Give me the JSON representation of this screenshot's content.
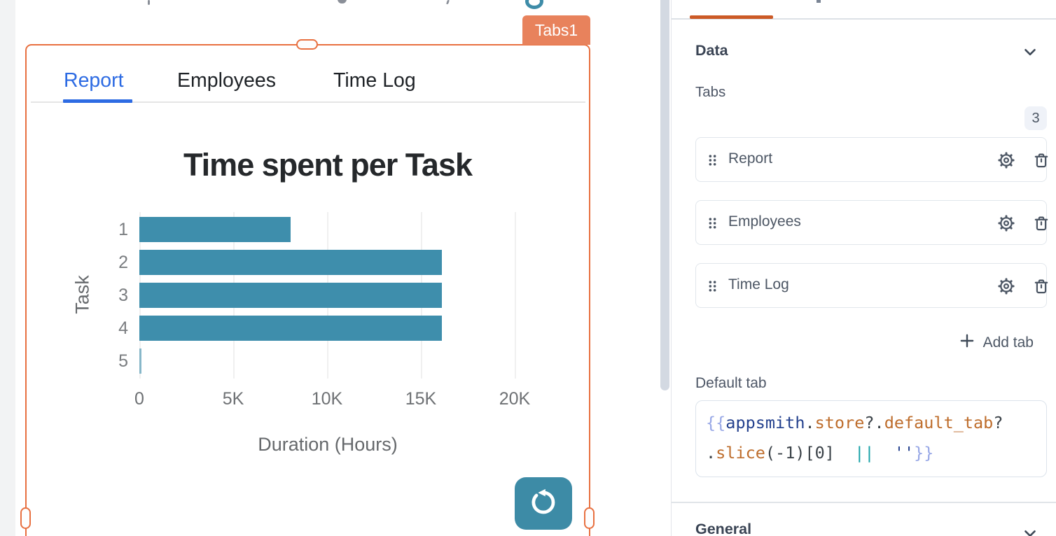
{
  "canvas": {
    "widget_badge": "Tabs1",
    "tabs": [
      {
        "label": "Report",
        "active": true
      },
      {
        "label": "Employees",
        "active": false
      },
      {
        "label": "Time Log",
        "active": false
      }
    ]
  },
  "chart_data": {
    "type": "bar",
    "orientation": "horizontal",
    "title": "Time spent per Task",
    "categories": [
      "1",
      "2",
      "3",
      "4",
      "5"
    ],
    "values": [
      8060,
      16120,
      16120,
      16120,
      100
    ],
    "xlabel": "Duration (Hours)",
    "ylabel": "Task",
    "x_ticks": [
      0,
      5000,
      10000,
      15000,
      20000
    ],
    "x_tick_labels": [
      "0",
      "5K",
      "10K",
      "15K",
      "20K"
    ],
    "xlim": [
      0,
      22500
    ],
    "grid": true,
    "legend": false,
    "bar_color": "#3E8EAC"
  },
  "panel": {
    "data_section_title": "Data",
    "tabs_field_label": "Tabs",
    "tabs_count": "3",
    "tabs_list": [
      {
        "label": "Report"
      },
      {
        "label": "Employees"
      },
      {
        "label": "Time Log"
      }
    ],
    "add_tab_label": "Add tab",
    "default_tab_label": "Default tab",
    "code": {
      "lines": [
        [
          [
            "{{",
            "brace"
          ],
          [
            "appsmith",
            "kw"
          ],
          [
            ".",
            "p"
          ],
          [
            "store",
            "prop"
          ],
          [
            "?.",
            "p"
          ],
          [
            "default_tab",
            "prop"
          ],
          [
            "?",
            "p"
          ]
        ],
        [
          [
            ".",
            "p"
          ],
          [
            "slice",
            "prop"
          ],
          [
            "(-1)[0]",
            "p"
          ],
          [
            "  ",
            "p"
          ],
          [
            "||",
            "op"
          ],
          [
            "  ",
            "p"
          ],
          [
            "''",
            "str"
          ],
          [
            "}}",
            "brace"
          ]
        ]
      ]
    },
    "general_section_title": "General"
  },
  "icons": {
    "drag-handle-icon": "six-dot grid",
    "gear-icon": "settings cog",
    "trash-icon": "delete bin",
    "plus-icon": "+",
    "chevron-down-icon": "v",
    "refresh-icon": "counterclockwise circular arrow"
  },
  "colors": {
    "selection_orange": "#E87040",
    "widget_badge_orange": "#E8825C",
    "panel_accent_orange": "#CC5A26",
    "active_tab_blue": "#2D6BE3",
    "chart_bar_teal": "#3E8EAC",
    "refresh_button_teal": "#3D8BA6",
    "code_brace": "#97A7E6",
    "code_keyword": "#24418E",
    "code_property": "#BE6D2C",
    "code_operator": "#1AA3A8"
  }
}
